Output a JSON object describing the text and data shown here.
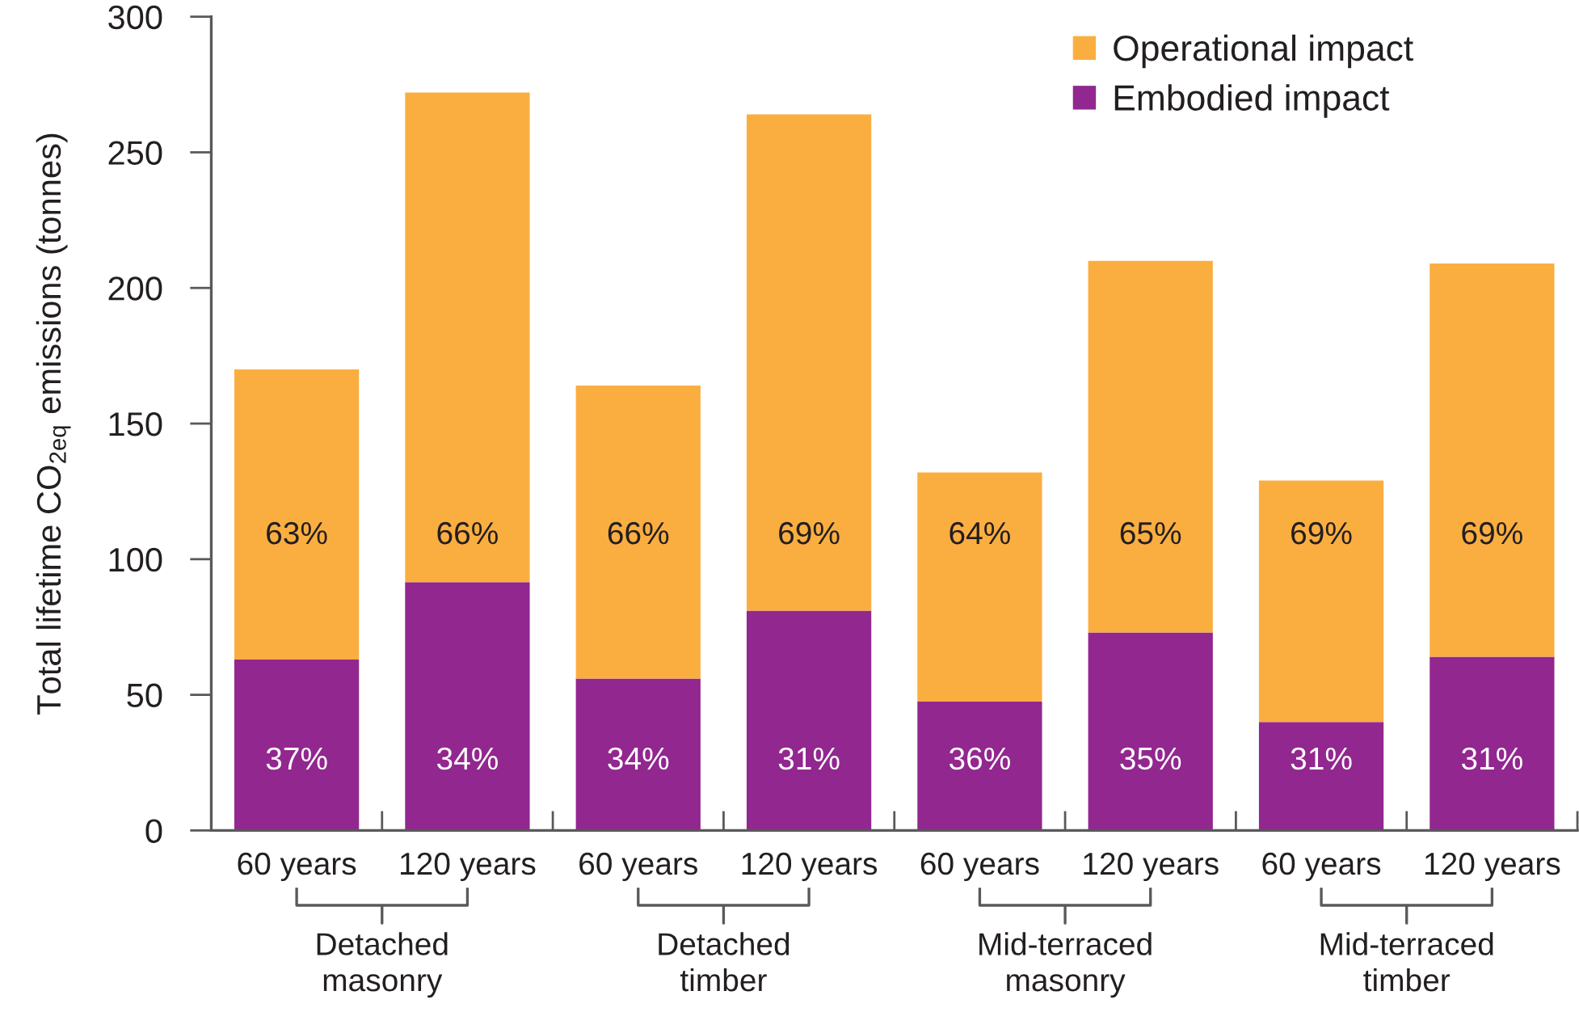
{
  "chart_data": {
    "type": "bar",
    "stacked": true,
    "ylabel": "Total lifetime CO$_{2eq}$ emissions (tonnes)",
    "categories": [
      "60 years",
      "120 years",
      "60 years",
      "120 years",
      "60 years",
      "120 years",
      "60 years",
      "120 years"
    ],
    "series": [
      {
        "name": "Embodied impact",
        "color": "#92278f",
        "values": [
          63,
          91.5,
          56,
          81,
          47.5,
          73,
          40,
          64
        ]
      },
      {
        "name": "Operational impact",
        "color": "#fbae40",
        "values": [
          107,
          180.5,
          108,
          183,
          84.5,
          137,
          89,
          145
        ]
      }
    ],
    "ylim": [
      0,
      300
    ],
    "yticks": [
      0,
      50,
      100,
      150,
      200,
      250,
      300
    ],
    "grid": false,
    "legend": "top right",
    "annotations": [
      "63%",
      "66%",
      "66%",
      "69%",
      "64%",
      "65%",
      "69%",
      "69%",
      "37%",
      "34%",
      "34%",
      "31%",
      "36%",
      "35%",
      "31%",
      "31%",
      "Detached\nmasonry",
      "Detached\ntimber",
      "Mid-terraced\nmasonry",
      "Mid-terraced\ntimber"
    ]
  }
}
